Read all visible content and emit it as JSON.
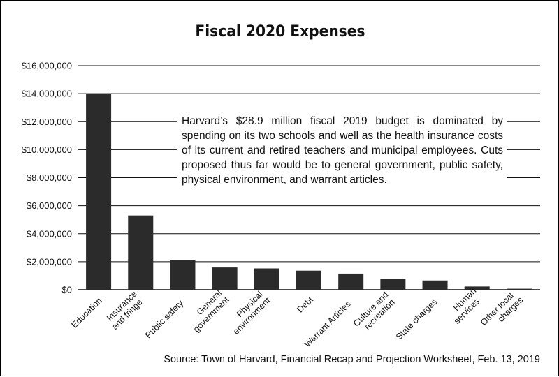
{
  "chart_data": {
    "type": "bar",
    "title": "Fiscal 2020 Expenses",
    "categories": [
      [
        "Education"
      ],
      [
        "Insurance",
        "and fringe"
      ],
      [
        "Public safety"
      ],
      [
        "General",
        "government"
      ],
      [
        "Physical",
        "environment"
      ],
      [
        "Debt"
      ],
      [
        "Warrant Articles"
      ],
      [
        "Culture and",
        "recreation"
      ],
      [
        "State charges"
      ],
      [
        "Human",
        "services"
      ],
      [
        "Other local",
        "charges"
      ]
    ],
    "values": [
      14000000,
      5300000,
      2120000,
      1590000,
      1520000,
      1360000,
      1150000,
      770000,
      660000,
      230000,
      70000
    ],
    "ylim": [
      0,
      16000000
    ],
    "yticks": [
      0,
      2000000,
      4000000,
      6000000,
      8000000,
      10000000,
      12000000,
      14000000,
      16000000
    ],
    "ytick_labels": [
      "$0",
      "$2,000,000",
      "$4,000,000",
      "$6,000,000",
      "$8,000,000",
      "$10,000,000",
      "$12,000,000",
      "$14,000,000",
      "$16,000,000"
    ],
    "grid": true,
    "bar_color": "#2b2b2b",
    "annotation": "Harvard’s $28.9 million fiscal 2019 budget is dominated by spending on its two schools and well as the health insurance costs of its current and retired teachers and municipal employees. Cuts proposed thus far would be to general government, public safety, physical environment, and warrant articles.",
    "source": "Source: Town of Harvard, Financial Recap and Projection Worksheet, Feb. 13, 2019"
  }
}
